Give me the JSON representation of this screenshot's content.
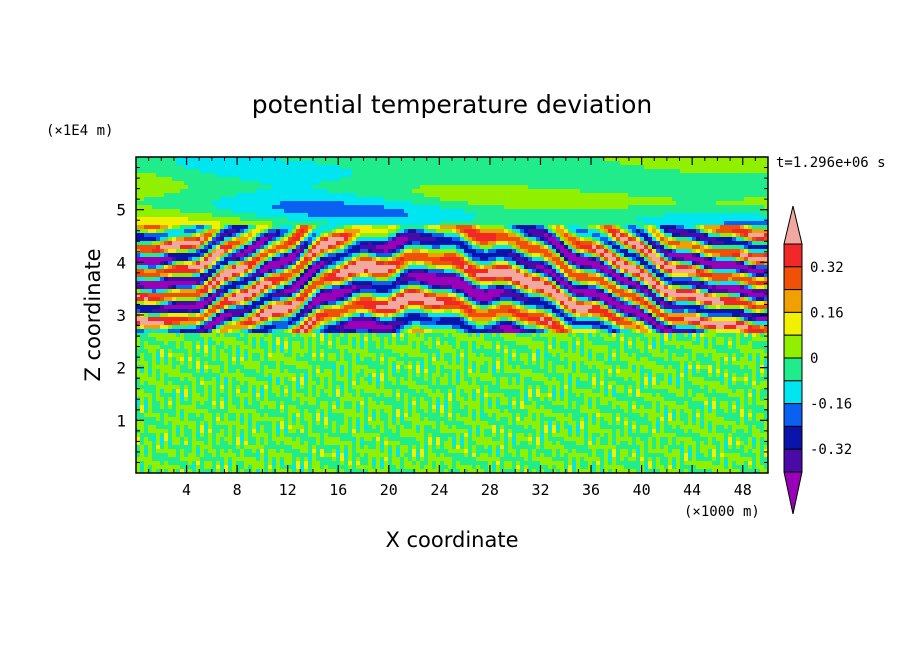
{
  "chart_data": {
    "type": "heatmap",
    "title": "potential temperature deviation",
    "xlabel": "X coordinate",
    "ylabel": "Z coordinate",
    "x_unit": "(×1000 m)",
    "y_unit": "(×1E4 m)",
    "time_label": "t=1.296e+06 s",
    "x_ticks": [
      "4",
      "8",
      "12",
      "16",
      "20",
      "24",
      "28",
      "32",
      "36",
      "40",
      "44",
      "48"
    ],
    "y_ticks": [
      "1",
      "2",
      "3",
      "4",
      "5"
    ],
    "xlim": [
      0,
      50
    ],
    "ylim": [
      0,
      6
    ],
    "colorbar": {
      "levels": [
        -0.4,
        -0.32,
        -0.24,
        -0.16,
        -0.08,
        0,
        0.08,
        0.16,
        0.24,
        0.32,
        0.4
      ],
      "labels": [
        "0.32",
        "0.16",
        "0",
        "-0.16",
        "-0.32"
      ],
      "colors_low_to_high": [
        "#9a00b8",
        "#4a0aa8",
        "#0a14aa",
        "#0a60f0",
        "#00e6f0",
        "#20ec8c",
        "#90f000",
        "#f0f000",
        "#f0a000",
        "#f05008",
        "#f02828",
        "#f0a8a0"
      ]
    },
    "regions": [
      {
        "name": "upper layer",
        "z_range": [
          4.7,
          6.0
        ],
        "values": "near 0 with weak anomalies"
      },
      {
        "name": "wave layer",
        "z_range": [
          2.7,
          4.7
        ],
        "values": "strong alternating positive and negative anomalies, ±0.4"
      },
      {
        "name": "lower layer",
        "z_range": [
          0,
          2.7
        ],
        "values": "small-scale noise between -0.08 and 0.08"
      }
    ]
  }
}
